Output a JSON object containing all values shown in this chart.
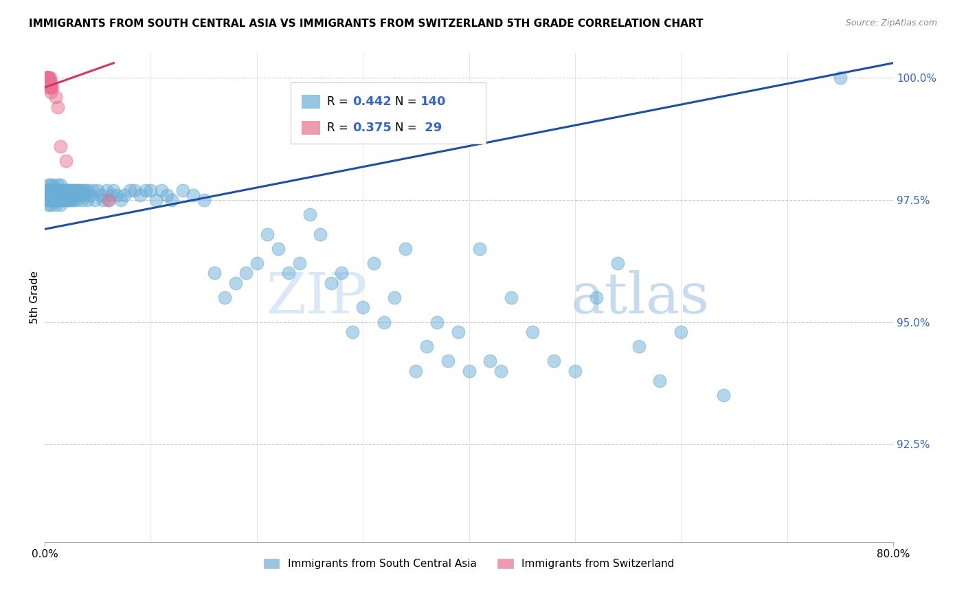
{
  "title": "IMMIGRANTS FROM SOUTH CENTRAL ASIA VS IMMIGRANTS FROM SWITZERLAND 5TH GRADE CORRELATION CHART",
  "source": "Source: ZipAtlas.com",
  "ylabel": "5th Grade",
  "xmin": 0.0,
  "xmax": 0.8,
  "ymin": 0.905,
  "ymax": 1.005,
  "yticks": [
    0.925,
    0.95,
    0.975,
    1.0
  ],
  "ytick_labels": [
    "92.5%",
    "95.0%",
    "97.5%",
    "100.0%"
  ],
  "xtick_labels": [
    "0.0%",
    "80.0%"
  ],
  "xticks": [
    0.0,
    0.8
  ],
  "blue_R": 0.442,
  "blue_N": 140,
  "pink_R": 0.375,
  "pink_N": 29,
  "blue_color": "#6aaed6",
  "pink_color": "#e87090",
  "blue_line_color": "#1a50aa",
  "pink_line_color": "#e03060",
  "legend_blue_label": "Immigrants from South Central Asia",
  "legend_pink_label": "Immigrants from Switzerland",
  "watermark_zip": "ZIP",
  "watermark_atlas": "atlas",
  "title_fontsize": 11,
  "axis_label_color": "#3366cc",
  "blue_line_x0": 0.0,
  "blue_line_y0": 0.969,
  "blue_line_x1": 0.8,
  "blue_line_y1": 1.003,
  "pink_line_x0": 0.0,
  "pink_line_y0": 0.998,
  "pink_line_x1": 0.065,
  "pink_line_y1": 1.003,
  "blue_scatter_x": [
    0.001,
    0.002,
    0.002,
    0.003,
    0.003,
    0.003,
    0.004,
    0.004,
    0.004,
    0.004,
    0.005,
    0.005,
    0.005,
    0.006,
    0.006,
    0.006,
    0.007,
    0.007,
    0.007,
    0.008,
    0.008,
    0.008,
    0.009,
    0.009,
    0.009,
    0.01,
    0.01,
    0.01,
    0.011,
    0.011,
    0.012,
    0.012,
    0.012,
    0.013,
    0.013,
    0.014,
    0.014,
    0.015,
    0.015,
    0.015,
    0.016,
    0.016,
    0.017,
    0.017,
    0.018,
    0.018,
    0.019,
    0.019,
    0.02,
    0.02,
    0.021,
    0.021,
    0.022,
    0.022,
    0.023,
    0.023,
    0.024,
    0.025,
    0.025,
    0.026,
    0.027,
    0.027,
    0.028,
    0.029,
    0.03,
    0.03,
    0.031,
    0.032,
    0.033,
    0.034,
    0.035,
    0.036,
    0.037,
    0.038,
    0.04,
    0.041,
    0.043,
    0.045,
    0.047,
    0.05,
    0.053,
    0.055,
    0.058,
    0.06,
    0.063,
    0.065,
    0.068,
    0.072,
    0.075,
    0.08,
    0.085,
    0.09,
    0.095,
    0.1,
    0.105,
    0.11,
    0.115,
    0.12,
    0.13,
    0.14,
    0.15,
    0.16,
    0.17,
    0.18,
    0.19,
    0.2,
    0.21,
    0.22,
    0.23,
    0.24,
    0.25,
    0.26,
    0.27,
    0.28,
    0.29,
    0.3,
    0.31,
    0.32,
    0.33,
    0.34,
    0.35,
    0.36,
    0.37,
    0.38,
    0.39,
    0.4,
    0.41,
    0.42,
    0.43,
    0.44,
    0.46,
    0.48,
    0.5,
    0.52,
    0.54,
    0.56,
    0.58,
    0.6,
    0.64,
    0.75
  ],
  "blue_scatter_y": [
    0.976,
    0.975,
    0.977,
    0.974,
    0.976,
    0.977,
    0.975,
    0.976,
    0.977,
    0.978,
    0.975,
    0.976,
    0.978,
    0.974,
    0.976,
    0.977,
    0.975,
    0.976,
    0.977,
    0.975,
    0.976,
    0.978,
    0.975,
    0.976,
    0.977,
    0.974,
    0.976,
    0.977,
    0.975,
    0.977,
    0.975,
    0.976,
    0.978,
    0.975,
    0.977,
    0.975,
    0.977,
    0.974,
    0.976,
    0.978,
    0.975,
    0.977,
    0.975,
    0.976,
    0.975,
    0.977,
    0.975,
    0.977,
    0.975,
    0.977,
    0.975,
    0.977,
    0.975,
    0.977,
    0.975,
    0.977,
    0.976,
    0.975,
    0.977,
    0.976,
    0.975,
    0.977,
    0.976,
    0.977,
    0.975,
    0.977,
    0.976,
    0.977,
    0.976,
    0.977,
    0.975,
    0.977,
    0.976,
    0.977,
    0.975,
    0.977,
    0.976,
    0.977,
    0.975,
    0.977,
    0.976,
    0.975,
    0.977,
    0.975,
    0.976,
    0.977,
    0.976,
    0.975,
    0.976,
    0.977,
    0.977,
    0.976,
    0.977,
    0.977,
    0.975,
    0.977,
    0.976,
    0.975,
    0.977,
    0.976,
    0.975,
    0.96,
    0.955,
    0.958,
    0.96,
    0.962,
    0.968,
    0.965,
    0.96,
    0.962,
    0.972,
    0.968,
    0.958,
    0.96,
    0.948,
    0.953,
    0.962,
    0.95,
    0.955,
    0.965,
    0.94,
    0.945,
    0.95,
    0.942,
    0.948,
    0.94,
    0.965,
    0.942,
    0.94,
    0.955,
    0.948,
    0.942,
    0.94,
    0.955,
    0.962,
    0.945,
    0.938,
    0.948,
    0.935,
    1.0
  ],
  "pink_scatter_x": [
    0.001,
    0.001,
    0.002,
    0.002,
    0.002,
    0.002,
    0.002,
    0.003,
    0.003,
    0.003,
    0.003,
    0.003,
    0.004,
    0.004,
    0.004,
    0.004,
    0.005,
    0.005,
    0.005,
    0.005,
    0.006,
    0.006,
    0.006,
    0.007,
    0.01,
    0.012,
    0.015,
    0.02,
    0.06
  ],
  "pink_scatter_y": [
    1.0,
    1.0,
    1.0,
    1.0,
    1.0,
    1.0,
    0.999,
    1.0,
    1.0,
    1.0,
    0.999,
    0.999,
    1.0,
    1.0,
    0.999,
    0.998,
    0.999,
    1.0,
    0.999,
    0.998,
    0.999,
    0.998,
    0.997,
    0.998,
    0.996,
    0.994,
    0.986,
    0.983,
    0.975
  ]
}
